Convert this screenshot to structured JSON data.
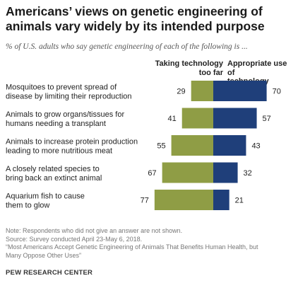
{
  "header": {
    "title": "Americans’ views on genetic engineering of animals vary widely by its intended purpose",
    "subtitle": "% of U.S. adults who say genetic engineering of each of the following is ..."
  },
  "chart_data": {
    "type": "bar",
    "orientation": "horizontal-diverging",
    "categories": [
      [
        "Mosquitoes to prevent spread of",
        "disease by limiting their reproduction"
      ],
      [
        "Animals to grow organs/tissues for",
        "humans needing a transplant"
      ],
      [
        "Animals to increase protein production",
        "leading to more nutritious meat"
      ],
      [
        "A closely related species to",
        "bring back an extinct animal"
      ],
      [
        "Aquarium fish to cause",
        "them to glow"
      ]
    ],
    "series": [
      {
        "name": "Taking technology too far",
        "name_lines": [
          "Taking technology",
          "too far"
        ],
        "values": [
          29,
          41,
          55,
          67,
          77
        ],
        "color": "#8f9d45",
        "direction": "left"
      },
      {
        "name": "Appropriate use of technology",
        "name_lines": [
          "Appropriate  use of",
          "technology"
        ],
        "values": [
          70,
          57,
          43,
          32,
          21
        ],
        "color": "#1f3f7a",
        "direction": "right"
      }
    ],
    "grid": false,
    "legend": "column headers"
  },
  "footer": {
    "note": "Note: Respondents who did not give an answer are not shown.",
    "source": "Source: Survey conducted April 23-May 6, 2018.",
    "report_line1": "“Most Americans Accept Genetic Engineering of Animals That Benefits Human Health, but",
    "report_line2": "Many Oppose Other Uses”",
    "brand": "PEW RESEARCH CENTER"
  }
}
